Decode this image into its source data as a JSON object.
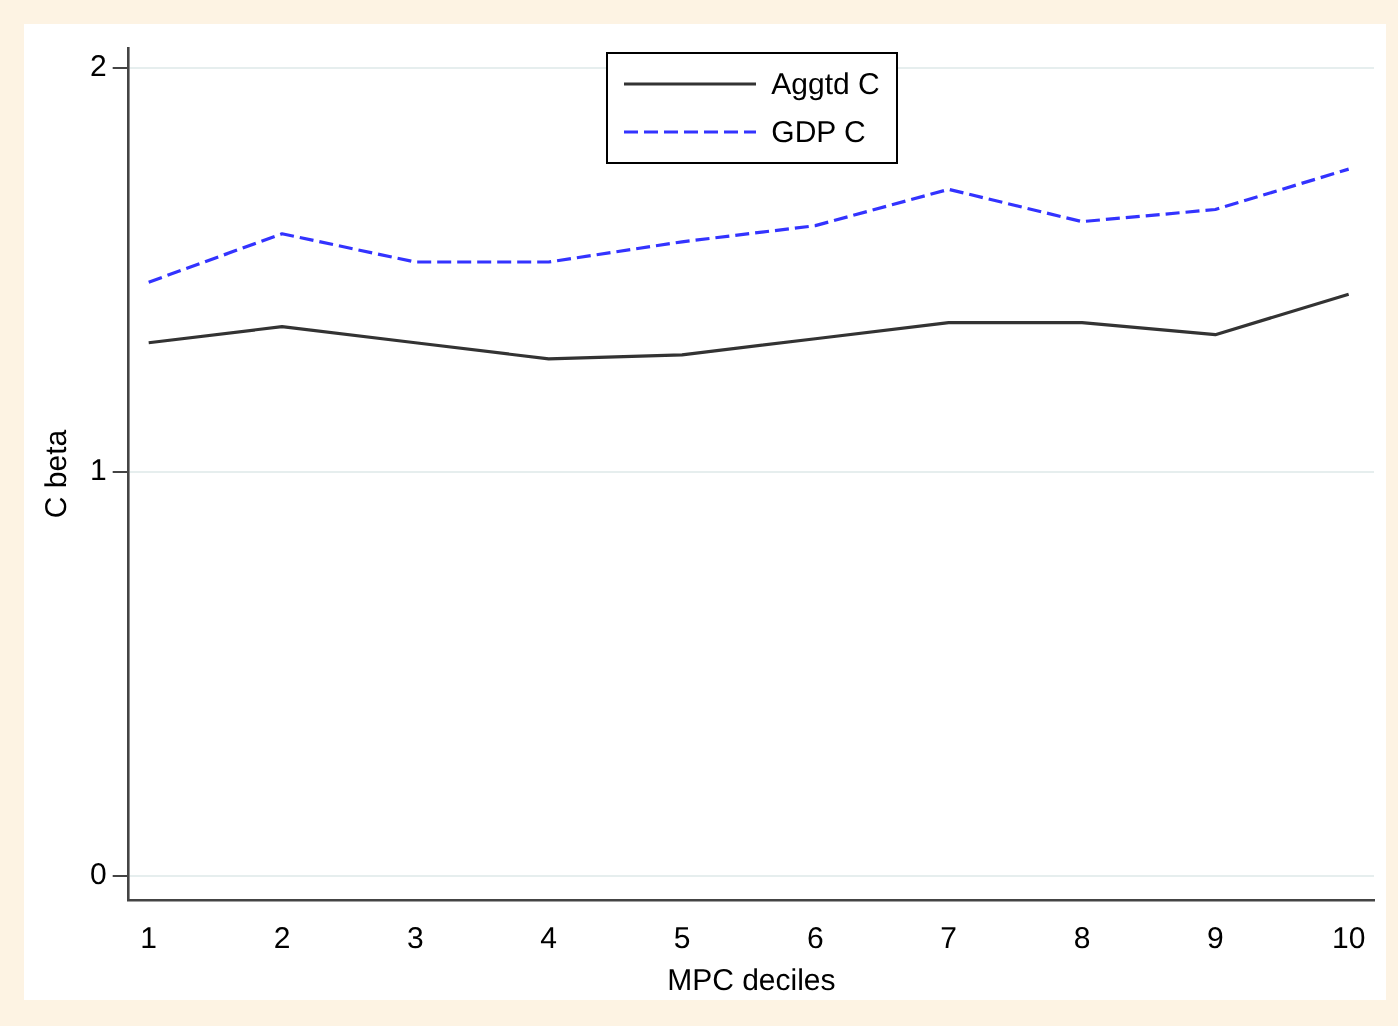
{
  "chart_data": {
    "type": "line",
    "xlabel": "MPC deciles",
    "ylabel": "C beta",
    "x": [
      1,
      2,
      3,
      4,
      5,
      6,
      7,
      8,
      9,
      10
    ],
    "series": [
      {
        "name": "Aggtd C",
        "color": "#333333",
        "line_style": "solid",
        "values": [
          1.32,
          1.36,
          1.32,
          1.28,
          1.29,
          1.33,
          1.37,
          1.37,
          1.34,
          1.44
        ]
      },
      {
        "name": "GDP C",
        "color": "#3333ff",
        "line_style": "dashed",
        "values": [
          1.47,
          1.59,
          1.52,
          1.52,
          1.57,
          1.61,
          1.7,
          1.62,
          1.65,
          1.75
        ]
      }
    ],
    "xlim": [
      0.85,
      10.19
    ],
    "xticks": [
      1,
      2,
      3,
      4,
      5,
      6,
      7,
      8,
      9,
      10
    ],
    "ylim": [
      -0.06,
      2.05
    ],
    "yticks": [
      0,
      1,
      2
    ],
    "grid": "y",
    "legend": "top",
    "marker": "none"
  }
}
